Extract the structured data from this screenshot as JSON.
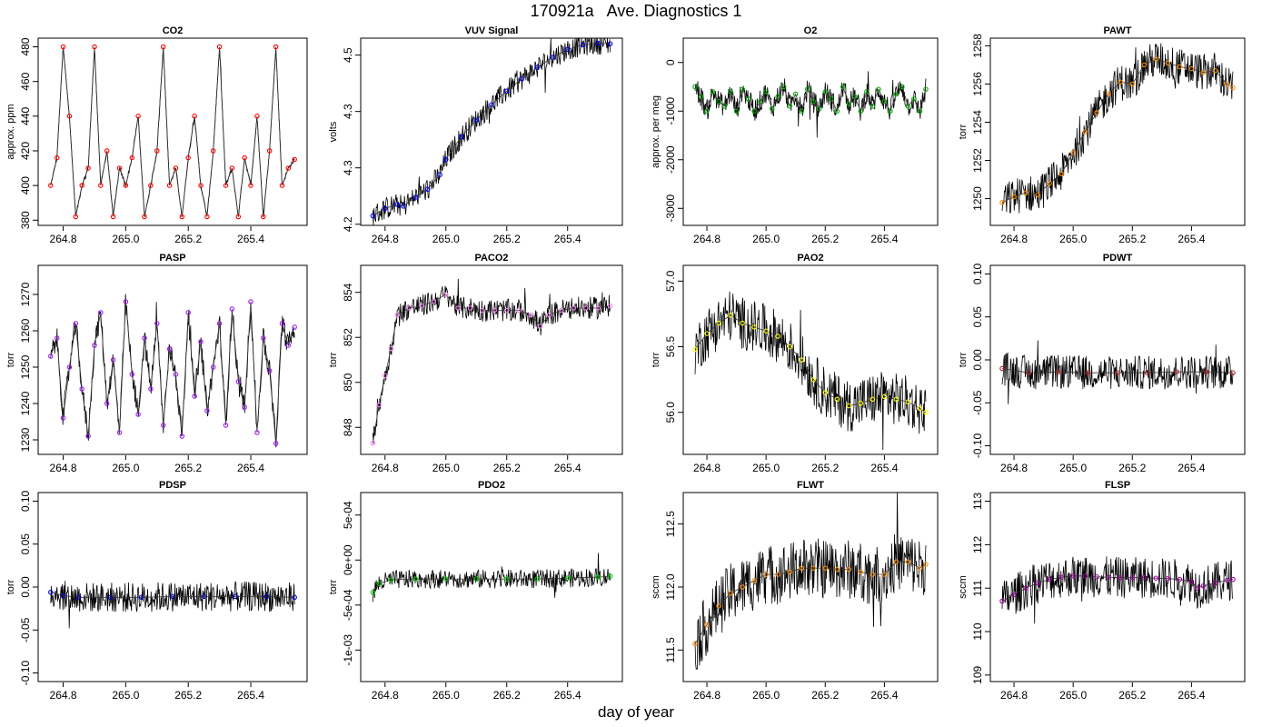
{
  "figure": {
    "title": "170921a   Ave. Diagnostics 1",
    "xlabel": "day of year",
    "noise_color": "#000000"
  },
  "chart_data": [
    {
      "type": "line",
      "title": "CO2",
      "ylabel": "approx. ppm",
      "xlim": [
        264.72,
        265.58
      ],
      "ylim": [
        377,
        485
      ],
      "xticks": [
        264.8,
        265.0,
        265.2,
        265.4
      ],
      "yticks": [
        380,
        400,
        420,
        440,
        460,
        480
      ],
      "color": "#ff0000",
      "series": [
        {
          "x": [
            264.76,
            264.78,
            264.8,
            264.82,
            264.84,
            264.86,
            264.88,
            264.9,
            264.92,
            264.94,
            264.96,
            264.98,
            265.0,
            265.02,
            265.04,
            265.06,
            265.08,
            265.1,
            265.12,
            265.14,
            265.16,
            265.18,
            265.2,
            265.22,
            265.24,
            265.26,
            265.28,
            265.3,
            265.32,
            265.34,
            265.36,
            265.38,
            265.4,
            265.42,
            265.44,
            265.46,
            265.48,
            265.5,
            265.52,
            265.54
          ],
          "values": [
            400,
            416,
            480,
            440,
            382,
            400,
            410,
            480,
            400,
            420,
            382,
            410,
            400,
            416,
            440,
            382,
            400,
            420,
            480,
            400,
            410,
            382,
            416,
            440,
            400,
            382,
            420,
            480,
            400,
            410,
            382,
            416,
            400,
            440,
            382,
            420,
            480,
            400,
            410,
            415
          ]
        }
      ]
    },
    {
      "type": "line",
      "title": "VUV Signal",
      "ylabel": "volts",
      "xlim": [
        264.72,
        265.58
      ],
      "ylim": [
        4.148,
        4.48
      ],
      "xticks": [
        264.8,
        265.0,
        265.2,
        265.4
      ],
      "yticks": [
        4.15,
        4.25,
        4.35,
        4.45
      ],
      "color": "#0000ff",
      "series": [
        {
          "x": [
            264.76,
            264.8,
            264.84,
            264.86,
            264.9,
            264.94,
            264.98,
            265.0,
            265.05,
            265.1,
            265.15,
            265.2,
            265.25,
            265.3,
            265.35,
            265.4,
            265.45,
            265.5,
            265.54
          ],
          "values": [
            4.165,
            4.178,
            4.185,
            4.182,
            4.198,
            4.212,
            4.238,
            4.265,
            4.305,
            4.335,
            4.362,
            4.386,
            4.408,
            4.428,
            4.446,
            4.46,
            4.468,
            4.471,
            4.47
          ]
        }
      ]
    },
    {
      "type": "line",
      "title": "O2",
      "ylabel": "approx. per meg",
      "xlim": [
        264.72,
        265.58
      ],
      "ylim": [
        -3350,
        500
      ],
      "xticks": [
        264.8,
        265.0,
        265.2,
        265.4
      ],
      "yticks": [
        -3000,
        -2000,
        -1000,
        0
      ],
      "color": "#00aa00",
      "series": [
        {
          "x": [
            264.76,
            264.78,
            264.8,
            264.82,
            264.84,
            264.86,
            264.88,
            264.9,
            264.92,
            264.94,
            264.96,
            264.98,
            265.0,
            265.02,
            265.04,
            265.06,
            265.08,
            265.1,
            265.12,
            265.14,
            265.16,
            265.18,
            265.2,
            265.22,
            265.24,
            265.26,
            265.28,
            265.3,
            265.32,
            265.34,
            265.36,
            265.38,
            265.4,
            265.42,
            265.44,
            265.46,
            265.48,
            265.5,
            265.52,
            265.54
          ],
          "values": [
            -500,
            -700,
            -1000,
            -600,
            -800,
            -900,
            -600,
            -1000,
            -550,
            -750,
            -1000,
            -800,
            -600,
            -950,
            -700,
            -500,
            -900,
            -650,
            -1000,
            -550,
            -800,
            -950,
            -600,
            -750,
            -1000,
            -500,
            -850,
            -700,
            -1000,
            -600,
            -900,
            -550,
            -800,
            -1000,
            -650,
            -500,
            -900,
            -750,
            -1000,
            -550
          ]
        }
      ]
    },
    {
      "type": "line",
      "title": "PAWT",
      "ylabel": "torr",
      "xlim": [
        264.72,
        265.58
      ],
      "ylim": [
        1248.6,
        1258.4
      ],
      "xticks": [
        264.8,
        265.0,
        265.2,
        265.4
      ],
      "yticks": [
        1250,
        1252,
        1254,
        1256,
        1258
      ],
      "color": "#ff8c00",
      "series": [
        {
          "x": [
            264.76,
            264.8,
            264.84,
            264.88,
            264.92,
            264.96,
            265.0,
            265.04,
            265.08,
            265.12,
            265.16,
            265.2,
            265.24,
            265.28,
            265.32,
            265.36,
            265.4,
            265.44,
            265.48,
            265.52,
            265.54
          ],
          "values": [
            1249.8,
            1250.1,
            1250.3,
            1250.2,
            1250.8,
            1251.3,
            1252.4,
            1253.5,
            1254.5,
            1255.5,
            1256.1,
            1256.0,
            1257.0,
            1257.3,
            1257.1,
            1256.9,
            1256.8,
            1256.6,
            1256.7,
            1256.0,
            1255.8
          ]
        }
      ]
    },
    {
      "type": "line",
      "title": "PASP",
      "ylabel": "torr",
      "xlim": [
        264.72,
        265.58
      ],
      "ylim": [
        1226,
        1278
      ],
      "xticks": [
        264.8,
        265.0,
        265.2,
        265.4
      ],
      "yticks": [
        1230,
        1240,
        1250,
        1260,
        1270
      ],
      "color": "#a020f0",
      "series": [
        {
          "x": [
            264.76,
            264.78,
            264.8,
            264.82,
            264.84,
            264.86,
            264.88,
            264.9,
            264.92,
            264.94,
            264.96,
            264.98,
            265.0,
            265.02,
            265.04,
            265.06,
            265.08,
            265.1,
            265.12,
            265.14,
            265.16,
            265.18,
            265.2,
            265.22,
            265.24,
            265.26,
            265.28,
            265.3,
            265.32,
            265.34,
            265.36,
            265.38,
            265.4,
            265.42,
            265.44,
            265.46,
            265.48,
            265.5,
            265.52,
            265.54
          ],
          "values": [
            1253,
            1258,
            1236,
            1250,
            1262,
            1244,
            1231,
            1256,
            1265,
            1240,
            1252,
            1232,
            1268,
            1248,
            1237,
            1258,
            1244,
            1262,
            1234,
            1255,
            1248,
            1231,
            1265,
            1242,
            1257,
            1238,
            1250,
            1262,
            1234,
            1266,
            1246,
            1239,
            1268,
            1232,
            1258,
            1249,
            1229,
            1262,
            1256,
            1261
          ]
        }
      ]
    },
    {
      "type": "line",
      "title": "PACO2",
      "ylabel": "torr",
      "xlim": [
        264.72,
        265.58
      ],
      "ylim": [
        846.8,
        855.2
      ],
      "xticks": [
        264.8,
        265.0,
        265.2,
        265.4
      ],
      "yticks": [
        848,
        850,
        852,
        854
      ],
      "color": "#ee82ee",
      "series": [
        {
          "x": [
            264.76,
            264.78,
            264.8,
            264.82,
            264.84,
            264.88,
            264.92,
            264.96,
            265.0,
            265.04,
            265.08,
            265.12,
            265.16,
            265.2,
            265.24,
            265.28,
            265.31,
            265.34,
            265.38,
            265.42,
            265.46,
            265.5,
            265.54
          ],
          "values": [
            847.3,
            849.0,
            850.3,
            851.5,
            853.0,
            853.3,
            853.4,
            853.6,
            853.9,
            853.3,
            853.3,
            853.2,
            853.2,
            853.2,
            853.2,
            853.0,
            852.5,
            853.0,
            853.2,
            853.3,
            853.3,
            853.3,
            853.4
          ]
        }
      ]
    },
    {
      "type": "line",
      "title": "PAO2",
      "ylabel": "torr",
      "xlim": [
        264.72,
        265.58
      ],
      "ylim": [
        55.68,
        57.12
      ],
      "xticks": [
        264.8,
        265.0,
        265.2,
        265.4
      ],
      "yticks": [
        56.0,
        56.5,
        57.0
      ],
      "color": "#ffff00",
      "series": [
        {
          "x": [
            264.76,
            264.8,
            264.84,
            264.88,
            264.92,
            264.96,
            265.0,
            265.04,
            265.08,
            265.12,
            265.16,
            265.2,
            265.24,
            265.28,
            265.32,
            265.36,
            265.4,
            265.44,
            265.48,
            265.52,
            265.54
          ],
          "values": [
            56.48,
            56.6,
            56.68,
            56.74,
            56.68,
            56.65,
            56.62,
            56.58,
            56.5,
            56.4,
            56.25,
            56.15,
            56.1,
            56.05,
            56.07,
            56.1,
            56.12,
            56.1,
            56.08,
            56.03,
            56.0
          ]
        }
      ]
    },
    {
      "type": "line",
      "title": "PDWT",
      "ylabel": "torr",
      "xlim": [
        264.72,
        265.58
      ],
      "ylim": [
        -0.11,
        0.11
      ],
      "xticks": [
        264.8,
        265.0,
        265.2,
        265.4
      ],
      "yticks": [
        -0.1,
        -0.05,
        0.0,
        0.05,
        0.1
      ],
      "color": "#b22222",
      "series": [
        {
          "x": [
            264.76,
            264.85,
            264.95,
            265.05,
            265.15,
            265.25,
            265.35,
            265.45,
            265.54
          ],
          "values": [
            -0.01,
            -0.015,
            -0.014,
            -0.015,
            -0.015,
            -0.015,
            -0.014,
            -0.014,
            -0.015
          ]
        }
      ]
    },
    {
      "type": "line",
      "title": "PDSP",
      "ylabel": "torr",
      "xlim": [
        264.72,
        265.58
      ],
      "ylim": [
        -0.11,
        0.11
      ],
      "xticks": [
        264.8,
        265.0,
        265.2,
        265.4
      ],
      "yticks": [
        -0.1,
        -0.05,
        0.0,
        0.05,
        0.1
      ],
      "color": "#0000cd",
      "series": [
        {
          "x": [
            264.76,
            264.8,
            264.85,
            264.95,
            265.05,
            265.15,
            265.25,
            265.35,
            265.45,
            265.54
          ],
          "values": [
            -0.006,
            -0.01,
            -0.012,
            -0.012,
            -0.012,
            -0.011,
            -0.011,
            -0.011,
            -0.011,
            -0.012
          ]
        }
      ]
    },
    {
      "type": "line",
      "title": "PDO2",
      "ylabel": "torr",
      "xlim": [
        264.72,
        265.58
      ],
      "ylim": [
        -0.00135,
        0.00075
      ],
      "xticks": [
        264.8,
        265.0,
        265.2,
        265.4
      ],
      "yticks": [
        -0.001,
        -0.0005,
        0.0,
        0.0005
      ],
      "ytick_labels": [
        "-1e-03",
        "-5e-04",
        "0e+00",
        "5e-04"
      ],
      "color": "#00cc00",
      "series": [
        {
          "x": [
            264.76,
            264.78,
            264.82,
            264.9,
            265.0,
            265.1,
            265.2,
            265.3,
            265.4,
            265.5,
            265.54
          ],
          "values": [
            -0.00036,
            -0.00026,
            -0.00022,
            -0.00021,
            -0.00021,
            -0.00021,
            -0.00021,
            -0.00021,
            -0.0002,
            -0.00019,
            -0.00018
          ]
        }
      ]
    },
    {
      "type": "line",
      "title": "FLWT",
      "ylabel": "sccm",
      "xlim": [
        264.72,
        265.58
      ],
      "ylim": [
        111.25,
        112.75
      ],
      "xticks": [
        264.8,
        265.0,
        265.2,
        265.4
      ],
      "yticks": [
        111.5,
        112.0,
        112.5
      ],
      "color": "#ff8c00",
      "series": [
        {
          "x": [
            264.76,
            264.8,
            264.84,
            264.88,
            264.92,
            264.96,
            265.0,
            265.04,
            265.08,
            265.12,
            265.16,
            265.2,
            265.24,
            265.28,
            265.32,
            265.36,
            265.4,
            265.44,
            265.48,
            265.52,
            265.54
          ],
          "values": [
            111.55,
            111.7,
            111.85,
            111.95,
            112.0,
            112.05,
            112.1,
            112.1,
            112.12,
            112.15,
            112.15,
            112.15,
            112.14,
            112.14,
            112.12,
            112.1,
            112.1,
            112.2,
            112.2,
            112.15,
            112.18
          ]
        }
      ]
    },
    {
      "type": "line",
      "title": "FLSP",
      "ylabel": "sccm",
      "xlim": [
        264.72,
        265.58
      ],
      "ylim": [
        108.85,
        113.2
      ],
      "xticks": [
        264.8,
        265.0,
        265.2,
        265.4
      ],
      "yticks": [
        109,
        110,
        111,
        112,
        113
      ],
      "color": "#a000a0",
      "series": [
        {
          "x": [
            264.76,
            264.8,
            264.84,
            264.88,
            264.92,
            264.96,
            265.0,
            265.04,
            265.08,
            265.12,
            265.16,
            265.2,
            265.24,
            265.28,
            265.32,
            265.36,
            265.4,
            265.42,
            265.44,
            265.48,
            265.52,
            265.54
          ],
          "values": [
            110.7,
            110.85,
            111.0,
            111.12,
            111.2,
            111.25,
            111.28,
            111.28,
            111.26,
            111.25,
            111.24,
            111.24,
            111.24,
            111.23,
            111.22,
            111.2,
            111.15,
            111.0,
            111.05,
            111.12,
            111.18,
            111.2
          ]
        }
      ]
    }
  ]
}
